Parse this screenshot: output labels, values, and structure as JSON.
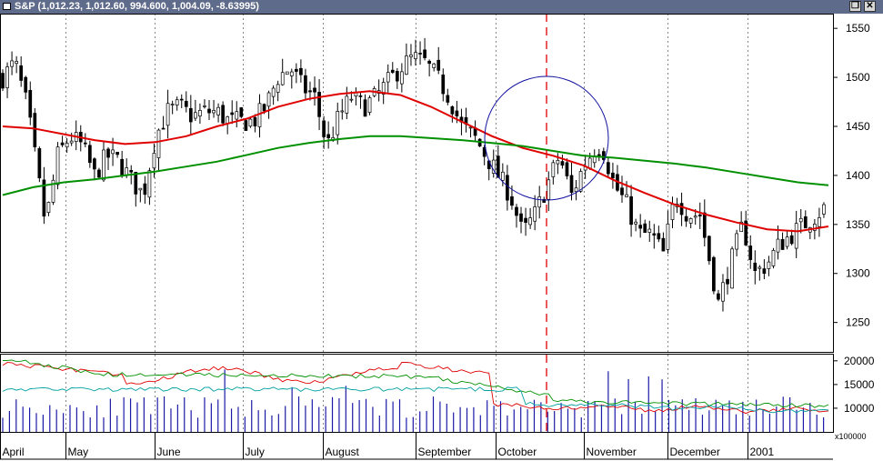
{
  "window": {
    "title": "S&P (1,012.23, 1,012.60, 994.600, 1,004.09, -8.63995)",
    "restore_icon": "restore-window-icon",
    "close_icon": "close-window-icon"
  },
  "colors": {
    "up_candle": "#ffffff",
    "down_candle": "#000000",
    "ma_short": "#e00000",
    "ma_long": "#009000",
    "volume": "#1a1aa8",
    "indicator_red": "#e00000",
    "indicator_green": "#009000",
    "indicator_teal": "#00a0a0",
    "marker_line": "#e00000",
    "highlight_circle": "#1010a0"
  },
  "chart_data": [
    {
      "type": "candlestick",
      "title": "S&P",
      "x_labels": [
        "April",
        "May",
        "June",
        "July",
        "August",
        "September",
        "October",
        "November",
        "December",
        "2001"
      ],
      "y_ticks": [
        1250,
        1300,
        1350,
        1400,
        1450,
        1500,
        1550
      ],
      "ylim": [
        1220,
        1565
      ],
      "grid": "vertical dotted at month starts",
      "series": [
        {
          "name": "",
          "kind": "moving-average",
          "color": "red",
          "points": [
            [
              0,
              1450
            ],
            [
              10,
              1448
            ],
            [
              20,
              1442
            ],
            [
              30,
              1436
            ],
            [
              40,
              1432
            ],
            [
              50,
              1434
            ],
            [
              60,
              1440
            ],
            [
              70,
              1450
            ],
            [
              80,
              1458
            ],
            [
              90,
              1470
            ],
            [
              100,
              1478
            ],
            [
              110,
              1483
            ],
            [
              120,
              1486
            ],
            [
              130,
              1482
            ],
            [
              140,
              1470
            ],
            [
              150,
              1455
            ],
            [
              160,
              1440
            ],
            [
              170,
              1428
            ],
            [
              180,
              1420
            ],
            [
              190,
              1410
            ],
            [
              200,
              1395
            ],
            [
              210,
              1382
            ],
            [
              220,
              1370
            ],
            [
              230,
              1360
            ],
            [
              240,
              1352
            ],
            [
              250,
              1345
            ],
            [
              260,
              1343
            ],
            [
              270,
              1348
            ]
          ]
        },
        {
          "name": "",
          "kind": "moving-average",
          "color": "green",
          "points": [
            [
              0,
              1380
            ],
            [
              10,
              1388
            ],
            [
              20,
              1393
            ],
            [
              30,
              1396
            ],
            [
              40,
              1400
            ],
            [
              50,
              1404
            ],
            [
              60,
              1409
            ],
            [
              70,
              1414
            ],
            [
              80,
              1421
            ],
            [
              90,
              1428
            ],
            [
              100,
              1433
            ],
            [
              110,
              1437
            ],
            [
              120,
              1440
            ],
            [
              130,
              1440
            ],
            [
              140,
              1438
            ],
            [
              150,
              1436
            ],
            [
              160,
              1433
            ],
            [
              170,
              1430
            ],
            [
              180,
              1425
            ],
            [
              190,
              1420
            ],
            [
              200,
              1418
            ],
            [
              210,
              1415
            ],
            [
              220,
              1412
            ],
            [
              230,
              1408
            ],
            [
              240,
              1403
            ],
            [
              250,
              1398
            ],
            [
              260,
              1393
            ],
            [
              270,
              1390
            ]
          ]
        }
      ],
      "close": [
        [
          0,
          1500
        ],
        [
          4,
          1515
        ],
        [
          8,
          1470
        ],
        [
          12,
          1390
        ],
        [
          14,
          1350
        ],
        [
          18,
          1420
        ],
        [
          22,
          1440
        ],
        [
          26,
          1430
        ],
        [
          30,
          1400
        ],
        [
          34,
          1420
        ],
        [
          38,
          1415
        ],
        [
          42,
          1395
        ],
        [
          46,
          1380
        ],
        [
          50,
          1440
        ],
        [
          54,
          1465
        ],
        [
          58,
          1470
        ],
        [
          62,
          1460
        ],
        [
          66,
          1465
        ],
        [
          70,
          1465
        ],
        [
          74,
          1455
        ],
        [
          78,
          1455
        ],
        [
          82,
          1455
        ],
        [
          86,
          1470
        ],
        [
          90,
          1500
        ],
        [
          94,
          1510
        ],
        [
          98,
          1490
        ],
        [
          102,
          1480
        ],
        [
          106,
          1430
        ],
        [
          110,
          1460
        ],
        [
          114,
          1480
        ],
        [
          118,
          1470
        ],
        [
          122,
          1480
        ],
        [
          126,
          1495
        ],
        [
          130,
          1510
        ],
        [
          134,
          1520
        ],
        [
          138,
          1515
        ],
        [
          142,
          1500
        ],
        [
          146,
          1480
        ],
        [
          150,
          1450
        ],
        [
          154,
          1440
        ],
        [
          158,
          1420
        ],
        [
          162,
          1400
        ],
        [
          166,
          1380
        ],
        [
          170,
          1340
        ],
        [
          174,
          1360
        ],
        [
          178,
          1390
        ],
        [
          182,
          1420
        ],
        [
          186,
          1380
        ],
        [
          190,
          1410
        ],
        [
          194,
          1430
        ],
        [
          196,
          1430
        ],
        [
          200,
          1390
        ],
        [
          204,
          1370
        ],
        [
          208,
          1340
        ],
        [
          212,
          1340
        ],
        [
          216,
          1320
        ],
        [
          220,
          1380
        ],
        [
          224,
          1360
        ],
        [
          228,
          1360
        ],
        [
          232,
          1300
        ],
        [
          234,
          1270
        ],
        [
          238,
          1310
        ],
        [
          242,
          1350
        ],
        [
          246,
          1300
        ],
        [
          250,
          1310
        ],
        [
          254,
          1330
        ],
        [
          258,
          1340
        ],
        [
          262,
          1350
        ],
        [
          266,
          1360
        ],
        [
          270,
          1370
        ]
      ],
      "volume_axis_ticks": [
        10000,
        15000,
        20000
      ],
      "volume_unit": "x100000"
    }
  ]
}
